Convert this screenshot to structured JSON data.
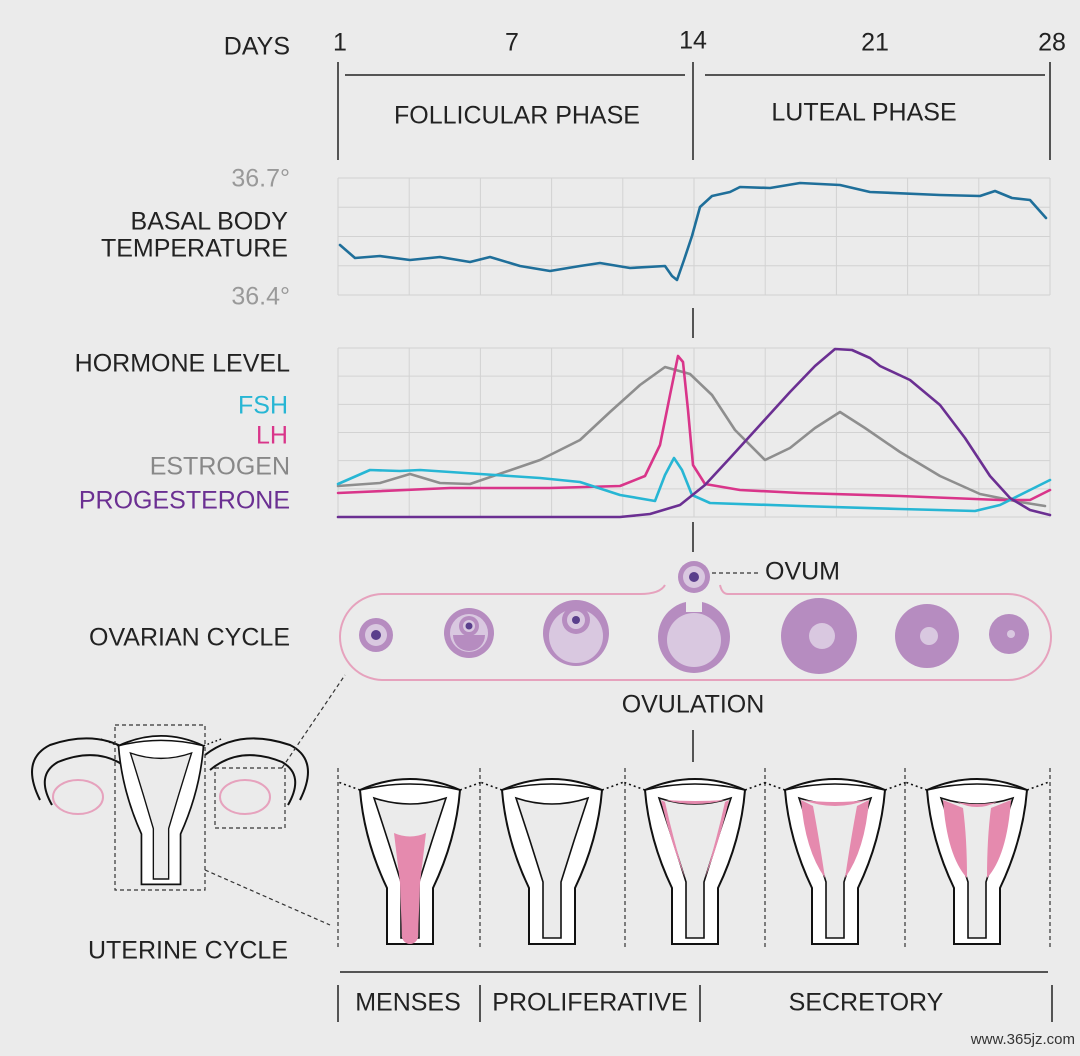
{
  "header": {
    "days_label": "DAYS",
    "days": [
      "1",
      "7",
      "14",
      "21",
      "28"
    ],
    "phases": [
      "FOLLICULAR PHASE",
      "LUTEAL PHASE"
    ]
  },
  "temperature": {
    "label_lines": [
      "BASAL BODY",
      "TEMPERATURE"
    ],
    "high": "36.7°",
    "low": "36.4°"
  },
  "hormones": {
    "title": "HORMONE LEVEL",
    "legend": [
      "FSH",
      "LH",
      "ESTROGEN",
      "PROGESTERONE"
    ]
  },
  "ovarian": {
    "label": "OVARIAN CYCLE",
    "ovum": "OVUM",
    "ovulation": "OVULATION"
  },
  "uterine": {
    "label": "UTERINE CYCLE",
    "phases": [
      "MENSES",
      "PROLIFERATIVE",
      "SECRETORY"
    ]
  },
  "watermark": "www.365jz.com"
}
